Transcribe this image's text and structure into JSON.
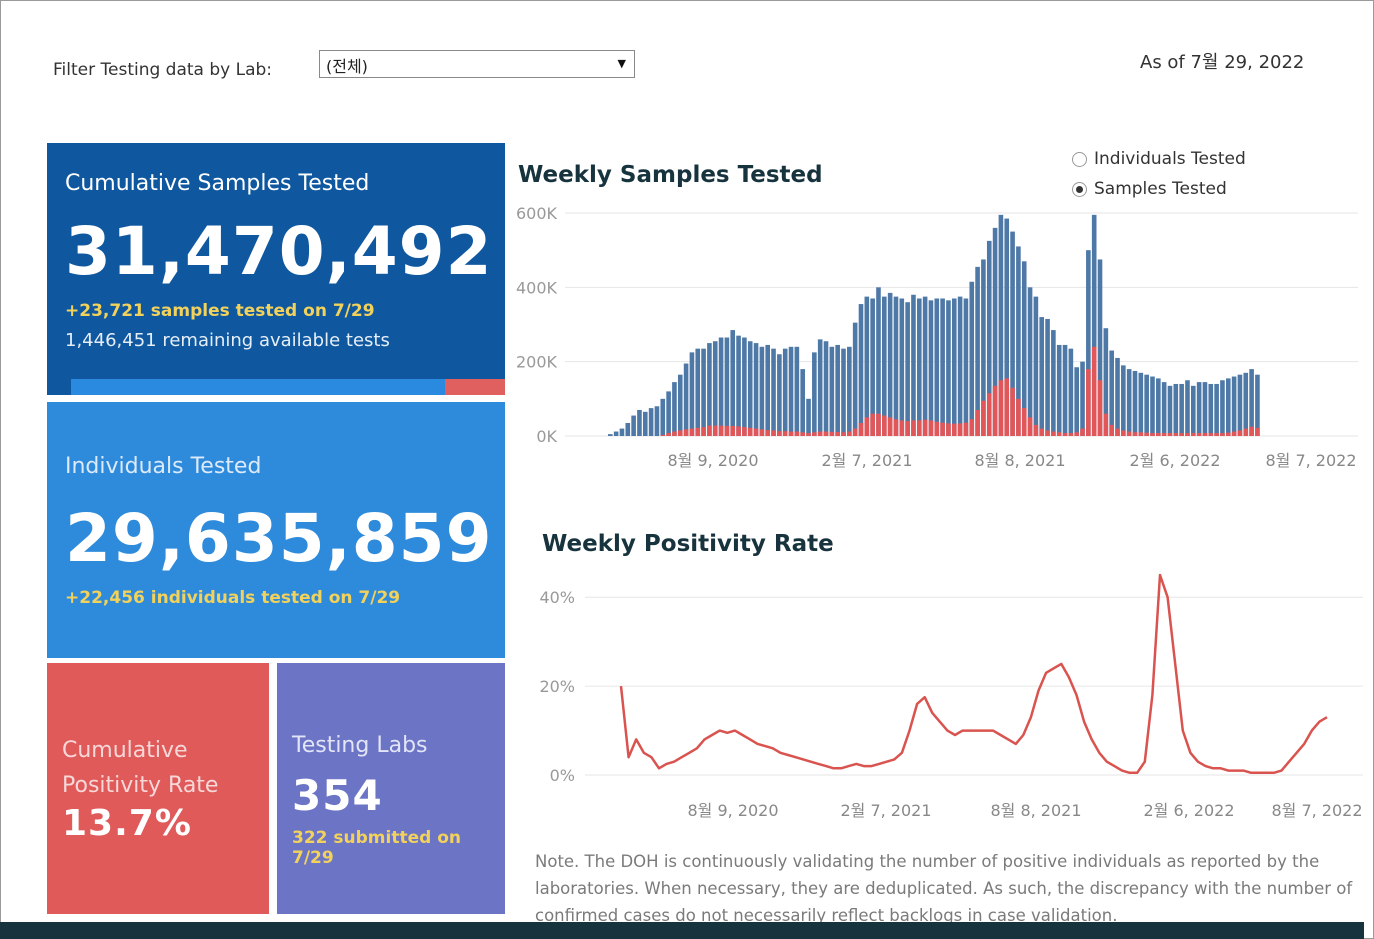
{
  "filter": {
    "label": "Filter Testing data by Lab:",
    "selected": "(전체)"
  },
  "as_of": "As of 7월 29, 2022",
  "cards": {
    "cumulative_samples": {
      "title": "Cumulative Samples Tested",
      "value": "31,470,492",
      "sub": "+23,721 samples tested on 7/29",
      "remaining": "1,446,451 remaining available tests",
      "used_fraction": 0.87
    },
    "individuals": {
      "title": "Individuals Tested",
      "value": "29,635,859",
      "sub": "+22,456  individuals  tested on 7/29"
    },
    "positivity": {
      "title_line1": "Cumulative",
      "title_line2": "Positivity Rate",
      "value": "13.7%"
    },
    "labs": {
      "title": "Testing Labs",
      "value": "354",
      "sub": "322 submitted on 7/29"
    }
  },
  "samples_chart": {
    "title": "Weekly Samples Tested",
    "toggle": {
      "options": [
        "Individuals Tested",
        "Samples Tested"
      ],
      "selected": "Samples Tested"
    }
  },
  "positivity_chart": {
    "title": "Weekly Positivity Rate"
  },
  "colors": {
    "navy": "#0f58a0",
    "blue": "#2e8bdb",
    "red": "#e05a5a",
    "purple": "#6c74c6",
    "bar_blue": "#4e79a7",
    "bar_red": "#e15759",
    "line": "#d9534f"
  },
  "chart_data": [
    {
      "type": "bar",
      "title": "Weekly Samples Tested",
      "y_ticks": [
        "600K",
        "400K",
        "200K",
        "0K"
      ],
      "x_ticks": [
        "8월 9, 2020",
        "2월 7, 2021",
        "8월 8, 2021",
        "2월 6, 2022",
        "8월 7, 2022"
      ],
      "ylim": [
        0,
        600000
      ],
      "series": [
        {
          "values": [
            5000,
            12000,
            20000,
            35000,
            55000,
            70000,
            65000,
            75000,
            80000,
            100000,
            120000,
            145000,
            165000,
            195000,
            225000,
            235000,
            235000,
            250000,
            255000,
            265000,
            265000,
            285000,
            270000,
            265000,
            255000,
            250000,
            240000,
            245000,
            235000,
            220000,
            235000,
            240000,
            240000,
            180000,
            100000,
            225000,
            260000,
            255000,
            240000,
            245000,
            235000,
            240000,
            305000,
            355000,
            375000,
            370000,
            400000,
            375000,
            385000,
            375000,
            370000,
            360000,
            380000,
            370000,
            375000,
            365000,
            370000,
            370000,
            365000,
            370000,
            375000,
            370000,
            415000,
            455000,
            475000,
            525000,
            560000,
            595000,
            585000,
            550000,
            510000,
            470000,
            400000,
            375000,
            320000,
            315000,
            285000,
            245000,
            245000,
            235000,
            185000,
            200000,
            500000,
            595000,
            475000,
            290000,
            230000,
            210000,
            190000,
            180000,
            175000,
            170000,
            165000,
            160000,
            155000,
            145000,
            135000,
            140000,
            140000,
            150000,
            135000,
            145000,
            145000,
            140000,
            140000,
            150000,
            155000,
            160000,
            165000,
            170000,
            180000,
            165000
          ]
        },
        {
          "values": [
            0,
            0,
            0,
            0,
            0,
            0,
            0,
            0,
            0,
            3000,
            8000,
            12000,
            15000,
            18000,
            20000,
            22000,
            24000,
            28000,
            28000,
            28000,
            27000,
            27000,
            26000,
            24000,
            22000,
            20000,
            18000,
            16000,
            15000,
            13000,
            13000,
            12000,
            12000,
            10000,
            8000,
            10000,
            12000,
            12000,
            11000,
            11000,
            10000,
            12000,
            20000,
            35000,
            50000,
            60000,
            60000,
            55000,
            50000,
            45000,
            42000,
            40000,
            42000,
            42000,
            44000,
            42000,
            38000,
            36000,
            34000,
            33000,
            34000,
            36000,
            45000,
            70000,
            95000,
            115000,
            135000,
            150000,
            155000,
            130000,
            100000,
            75000,
            50000,
            30000,
            20000,
            15000,
            12000,
            10000,
            8000,
            8000,
            10000,
            20000,
            180000,
            240000,
            150000,
            60000,
            30000,
            20000,
            15000,
            12000,
            10000,
            10000,
            9000,
            8000,
            8000,
            8000,
            8000,
            8000,
            8000,
            8000,
            8000,
            8000,
            8000,
            8000,
            8000,
            8000,
            9000,
            12000,
            15000,
            20000,
            25000,
            22000
          ]
        }
      ]
    },
    {
      "type": "line",
      "title": "Weekly Positivity Rate",
      "y_ticks": [
        "40%",
        "20%",
        "0%"
      ],
      "x_ticks": [
        "8월 9, 2020",
        "2월 7, 2021",
        "8월 8, 2021",
        "2월 6, 2022",
        "8월 7, 2022"
      ],
      "ylim": [
        0,
        45
      ],
      "series": [
        {
          "values": [
            20,
            4,
            8,
            5,
            4,
            1.5,
            2.5,
            3,
            4,
            5,
            6,
            8,
            9,
            10,
            9.5,
            10,
            9,
            8,
            7,
            6.5,
            6,
            5,
            4.5,
            4,
            3.5,
            3,
            2.5,
            2,
            1.5,
            1.5,
            2,
            2.5,
            2,
            2,
            2.5,
            3,
            3.5,
            5,
            10,
            16,
            17.5,
            14,
            12,
            10,
            9,
            10,
            10,
            10,
            10,
            10,
            9,
            8,
            7,
            9,
            13,
            19,
            23,
            24,
            25,
            22,
            18,
            12,
            8,
            5,
            3,
            2,
            1,
            0.5,
            0.5,
            3,
            18,
            45,
            40,
            25,
            10,
            5,
            3,
            2,
            1.5,
            1.5,
            1,
            1,
            1,
            0.5,
            0.5,
            0.5,
            0.5,
            1,
            3,
            5,
            7,
            10,
            12,
            13
          ]
        }
      ]
    }
  ],
  "note": "Note. The DOH is continuously validating the number of positive individuals as reported by the laboratories. When necessary, they are deduplicated. As such, the discrepancy with the number of confirmed cases do not necessarily reflect backlogs in case validation."
}
